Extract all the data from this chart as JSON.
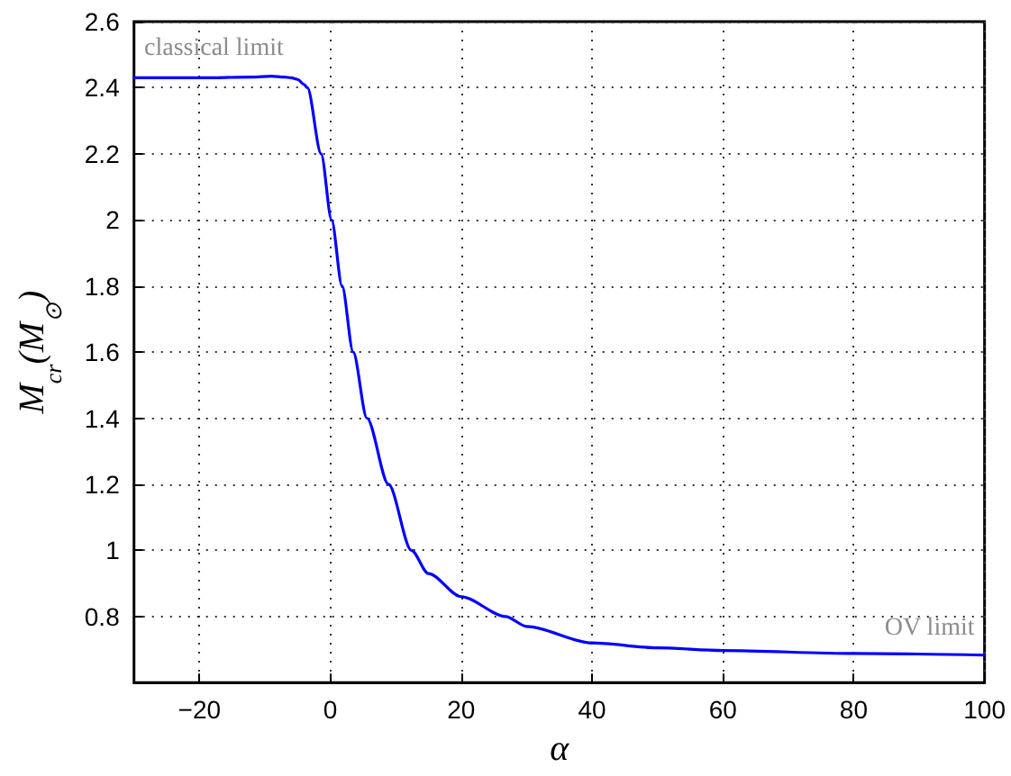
{
  "chart_data": {
    "type": "line",
    "xlabel": "α",
    "ylabel": "M$_{cr}$(M$_{⊙}$)",
    "annotations": [
      "classical limit",
      "OV limit"
    ],
    "x": [
      -30,
      -20,
      -12,
      -9,
      -7,
      -6,
      -5,
      -4,
      -3.5,
      -1.4,
      0.2,
      1.8,
      3.5,
      5.6,
      8.9,
      12.4,
      15,
      20,
      26.8,
      30,
      40,
      50,
      60,
      80,
      100
    ],
    "series": [
      {
        "color": "#0000ff",
        "values": [
          2.43,
          2.43,
          2.432,
          2.435,
          2.432,
          2.43,
          2.425,
          2.41,
          2.4,
          2.2,
          2.0,
          1.8,
          1.6,
          1.4,
          1.2,
          1.0,
          0.93,
          0.86,
          0.8,
          0.77,
          0.72,
          0.705,
          0.697,
          0.688,
          0.683
        ]
      }
    ],
    "xlim": [
      -30,
      100
    ],
    "xticks": [
      -20,
      0,
      20,
      40,
      60,
      80,
      100
    ],
    "ylim": [
      0.6,
      2.6
    ],
    "yticks": [
      0.8,
      1,
      1.2,
      1.4,
      1.6,
      1.8,
      2,
      2.2,
      2.4,
      2.6
    ],
    "grid": true,
    "marker": "none",
    "line_style": "solid"
  }
}
